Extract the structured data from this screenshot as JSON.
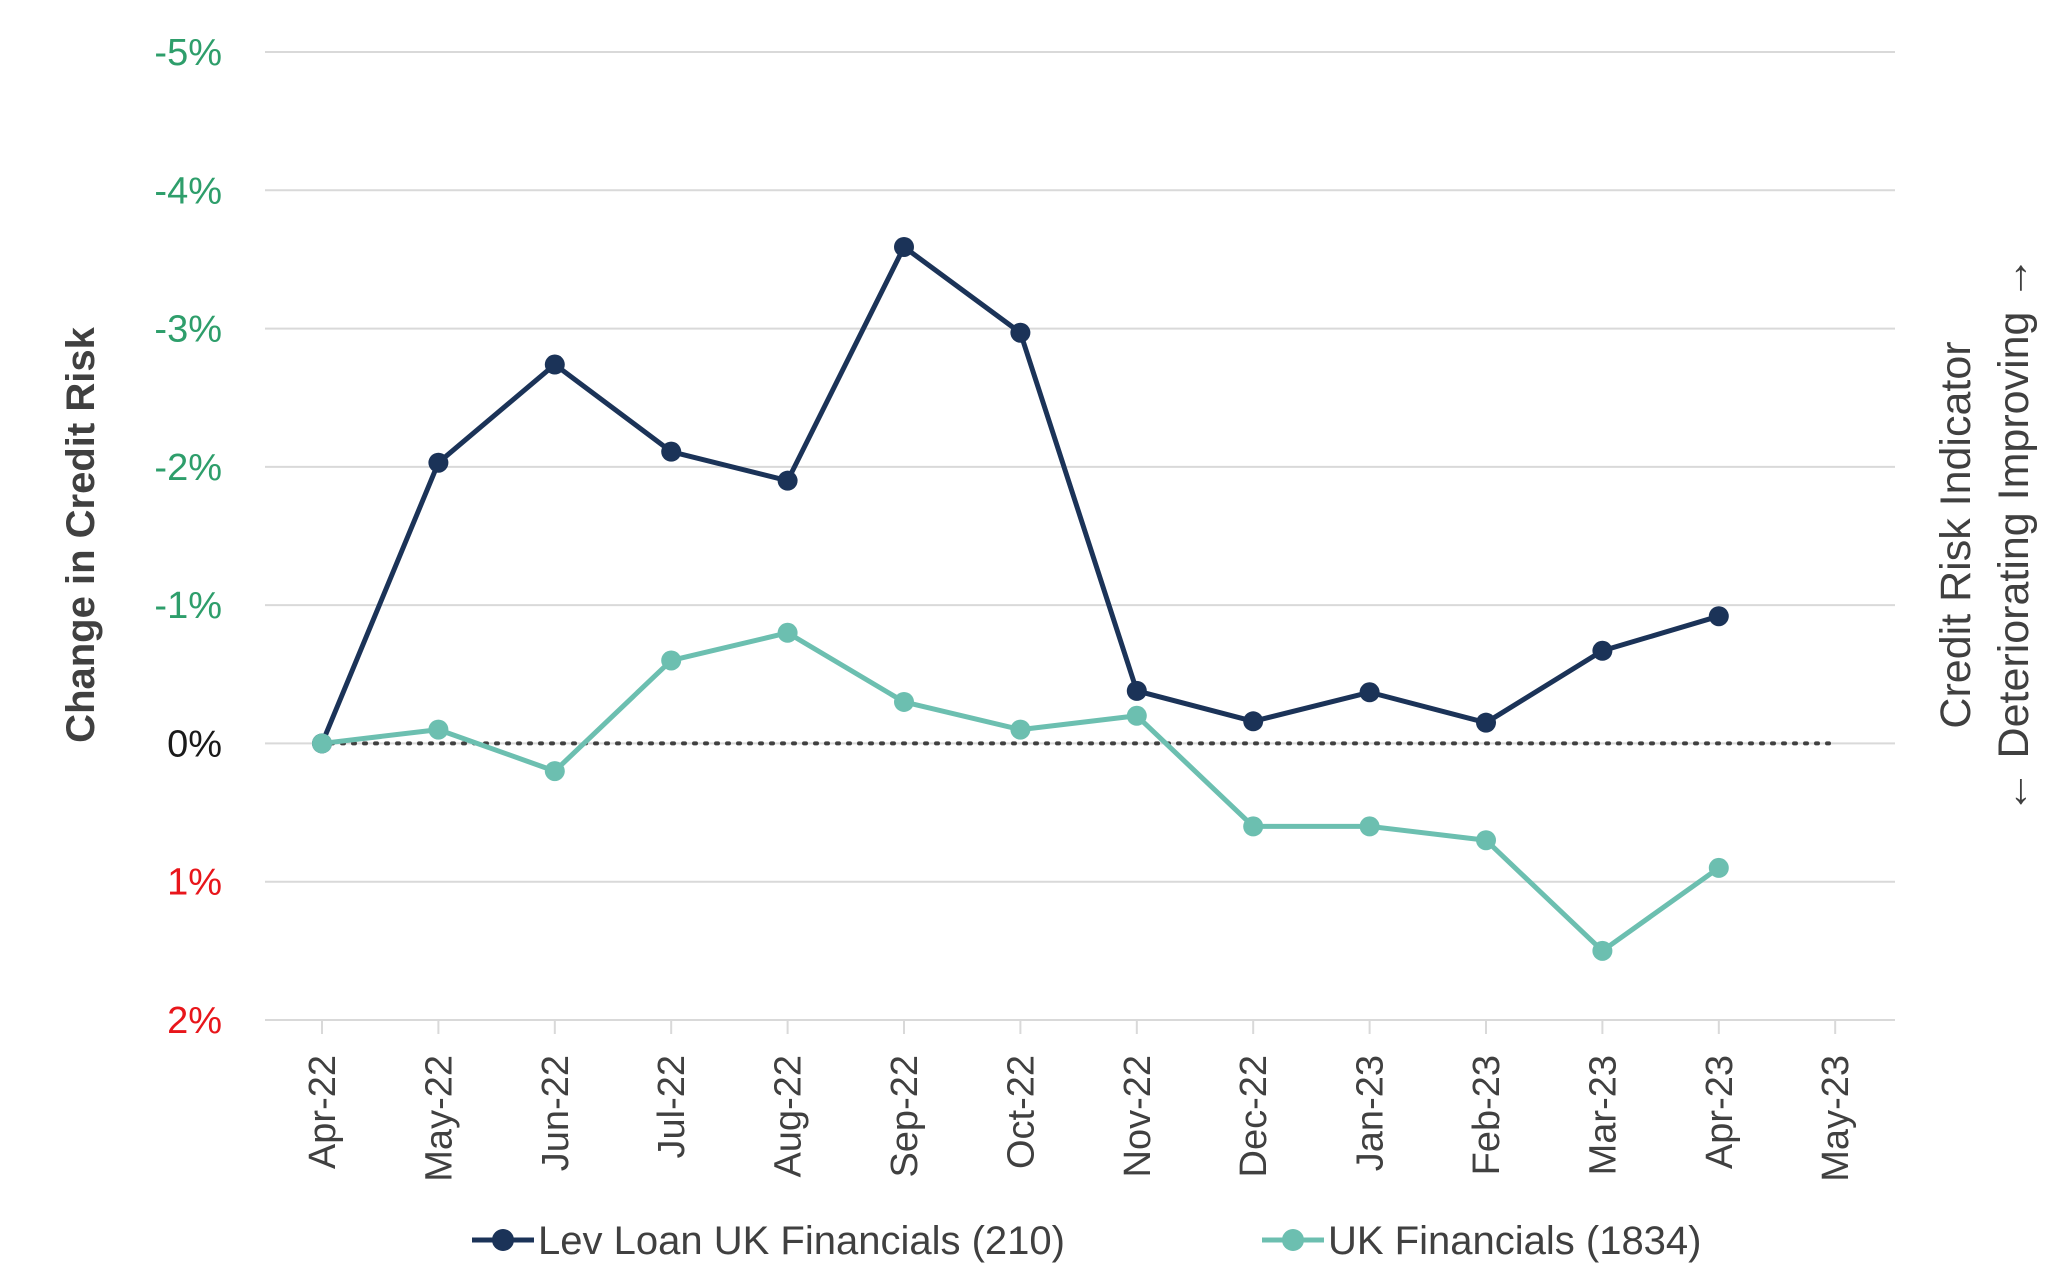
{
  "chart_data": {
    "type": "line",
    "y_axis_label": "Change in Credit Risk",
    "right_label_line1": "Credit Risk Indicator",
    "right_label_line2": "← Deteriorating Improving →",
    "y_inverted": true,
    "ylim": [
      -5,
      2
    ],
    "y_ticks": [
      {
        "value": -5,
        "label": "-5%",
        "color": "#2e9e6b"
      },
      {
        "value": -4,
        "label": "-4%",
        "color": "#2e9e6b"
      },
      {
        "value": -3,
        "label": "-3%",
        "color": "#2e9e6b"
      },
      {
        "value": -2,
        "label": "-2%",
        "color": "#2e9e6b"
      },
      {
        "value": -1,
        "label": "-1%",
        "color": "#2e9e6b"
      },
      {
        "value": 0,
        "label": "0%",
        "color": "#1a1a1a"
      },
      {
        "value": 1,
        "label": "1%",
        "color": "#e8161b"
      },
      {
        "value": 2,
        "label": "2%",
        "color": "#e8161b"
      }
    ],
    "categories": [
      "Apr-22",
      "May-22",
      "Jun-22",
      "Jul-22",
      "Aug-22",
      "Sep-22",
      "Oct-22",
      "Nov-22",
      "Dec-22",
      "Jan-23",
      "Feb-23",
      "Mar-23",
      "Apr-23",
      "May-23"
    ],
    "series": [
      {
        "name": "Lev Loan UK Financials (210)",
        "color": "#1b3358",
        "values": [
          0.0,
          -2.03,
          -2.74,
          -2.11,
          -1.9,
          -3.59,
          -2.97,
          -0.38,
          -0.16,
          -0.37,
          -0.15,
          -0.67,
          -0.92,
          null
        ]
      },
      {
        "name": "UK Financials (1834)",
        "color": "#6cbfb0",
        "values": [
          0.0,
          -0.1,
          0.2,
          -0.6,
          -0.8,
          -0.3,
          -0.1,
          -0.2,
          0.6,
          0.6,
          0.7,
          1.5,
          0.9,
          null
        ]
      }
    ],
    "reference_line": {
      "value": 0,
      "style": "dotted",
      "color": "#404040"
    },
    "grid": true,
    "legend_position": "bottom"
  }
}
